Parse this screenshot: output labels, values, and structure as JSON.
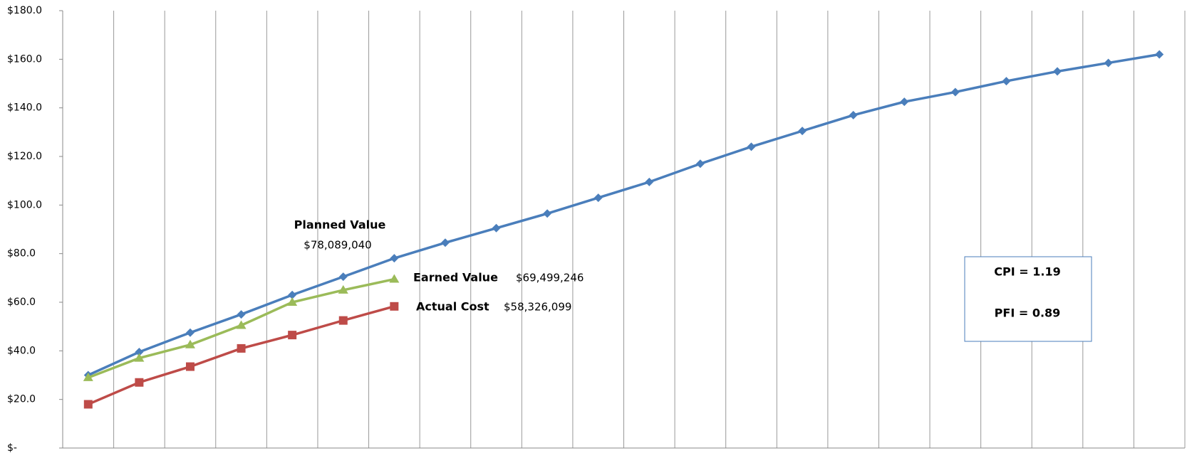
{
  "chart_data": {
    "type": "line",
    "categories": [
      null,
      null,
      null,
      null,
      null,
      null,
      null,
      null,
      null,
      null,
      null,
      null,
      null,
      null,
      null,
      null,
      null,
      null,
      null,
      null,
      null,
      null
    ],
    "series": [
      {
        "name": "Planned Value",
        "color": "#4a7ebb",
        "marker": "diamond",
        "values": [
          30,
          39.5,
          47.5,
          55,
          63,
          70.5,
          78.1,
          84.5,
          90.5,
          96.5,
          103,
          109.5,
          117,
          124,
          130.5,
          137,
          142.5,
          146.5,
          151,
          155,
          158.5,
          162
        ]
      },
      {
        "name": "Earned Value",
        "color": "#9bbb59",
        "marker": "triangle",
        "values": [
          29,
          37,
          42.5,
          50.5,
          60,
          65,
          69.5,
          null,
          null,
          null,
          null,
          null,
          null,
          null,
          null,
          null,
          null,
          null,
          null,
          null,
          null,
          null
        ]
      },
      {
        "name": "Actual Cost",
        "color": "#be4b48",
        "marker": "square",
        "values": [
          18,
          27,
          33.5,
          41,
          46.5,
          52.5,
          58.3,
          null,
          null,
          null,
          null,
          null,
          null,
          null,
          null,
          null,
          null,
          null,
          null,
          null,
          null,
          null
        ]
      }
    ],
    "annotations": [
      "$78,089,040",
      "$69,499,246",
      "$58,326,099"
    ],
    "box": [
      "CPI  = 1.19",
      "PFI  =  0.89"
    ],
    "ylim": [
      0,
      180
    ],
    "yticks": [
      {
        "value": 0,
        "label": "$-"
      },
      {
        "value": 20,
        "label": "$20.0"
      },
      {
        "value": 40,
        "label": "$40.0"
      },
      {
        "value": 60,
        "label": "$60.0"
      },
      {
        "value": 80,
        "label": "$80.0"
      },
      {
        "value": 100,
        "label": "$100.0"
      },
      {
        "value": 120,
        "label": "$120.0"
      },
      {
        "value": 140,
        "label": "$140.0"
      },
      {
        "value": 160,
        "label": "$160.0"
      },
      {
        "value": 180,
        "label": "$180.0"
      }
    ],
    "grid": "x"
  }
}
